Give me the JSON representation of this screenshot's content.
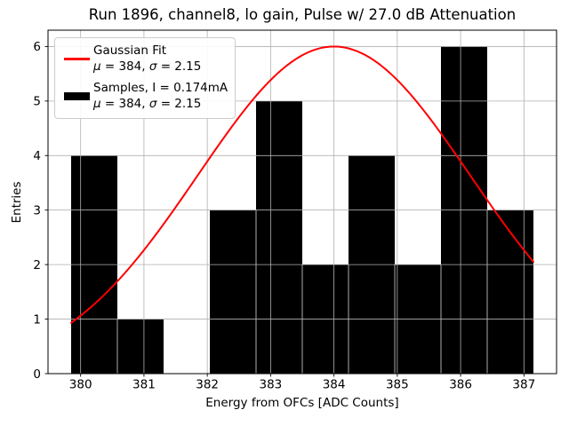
{
  "figure": {
    "title": "Run 1896, channel8, lo gain, Pulse w/ 27.0 dB Attenuation",
    "xlabel": "Energy from OFCs [ADC Counts]",
    "ylabel": "Entries"
  },
  "legend": {
    "entries": [
      {
        "sample": "red-line",
        "label": "Gaussian Fit",
        "stats": {
          "mu_sym": "μ",
          "mu_val": " = 384, ",
          "sigma_sym": "σ",
          "sigma_val": " = 2.15"
        }
      },
      {
        "sample": "black-rect",
        "label": "Samples, I = 0.174mA",
        "stats": {
          "mu_sym": "μ",
          "mu_val": " = 384, ",
          "sigma_sym": "σ",
          "sigma_val": " = 2.15"
        }
      }
    ]
  },
  "chart_data": {
    "type": "bar",
    "subtype": "histogram-with-gaussian-fit",
    "title": "Run 1896, channel8, lo gain, Pulse w/ 27.0 dB Attenuation",
    "xlabel": "Energy from OFCs [ADC Counts]",
    "ylabel": "Entries",
    "xlim": [
      379.485,
      387.515
    ],
    "ylim": [
      0,
      6.3
    ],
    "xticks": [
      380,
      381,
      382,
      383,
      384,
      385,
      386,
      387
    ],
    "yticks": [
      0,
      1,
      2,
      3,
      4,
      5,
      6
    ],
    "grid": true,
    "grid_color": "#b0b0b0",
    "legend_position": "upper-left",
    "series": [
      {
        "name": "Samples, I = 0.174mA",
        "type": "histogram",
        "color": "#000000",
        "bin_start": 379.85,
        "bin_width": 0.73,
        "bin_edges": [
          379.85,
          380.58,
          381.31,
          382.04,
          382.77,
          383.5,
          384.23,
          384.96,
          385.69,
          386.42,
          387.15
        ],
        "counts": [
          4,
          1,
          0,
          3,
          5,
          2,
          4,
          2,
          6,
          3
        ],
        "mu": 384,
        "sigma": 2.15
      },
      {
        "name": "Gaussian Fit",
        "type": "line",
        "color": "#ff0000",
        "mu": 384,
        "sigma": 2.15,
        "amplitude": 6,
        "x_start": 379.85,
        "x_end": 387.15
      }
    ]
  }
}
